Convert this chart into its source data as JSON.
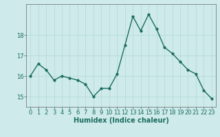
{
  "x": [
    0,
    1,
    2,
    3,
    4,
    5,
    6,
    7,
    8,
    9,
    10,
    11,
    12,
    13,
    14,
    15,
    16,
    17,
    18,
    19,
    20,
    21,
    22,
    23
  ],
  "y": [
    16.0,
    16.6,
    16.3,
    15.8,
    16.0,
    15.9,
    15.8,
    15.6,
    15.0,
    15.4,
    15.4,
    16.1,
    17.5,
    18.9,
    18.2,
    19.0,
    18.3,
    17.4,
    17.1,
    16.7,
    16.3,
    16.1,
    15.3,
    14.9
  ],
  "line_color": "#1a6b5f",
  "marker": "o",
  "marker_size": 2.0,
  "line_width": 1.0,
  "bg_color": "#ceeaea",
  "grid_color": "#b0d8d8",
  "xlabel": "Humidex (Indice chaleur)",
  "xlabel_fontsize": 7,
  "yticks": [
    15,
    16,
    17,
    18
  ],
  "xticks": [
    0,
    1,
    2,
    3,
    4,
    5,
    6,
    7,
    8,
    9,
    10,
    11,
    12,
    13,
    14,
    15,
    16,
    17,
    18,
    19,
    20,
    21,
    22,
    23
  ],
  "xlim": [
    -0.5,
    23.5
  ],
  "ylim": [
    14.5,
    19.5
  ],
  "tick_fontsize": 6.0
}
